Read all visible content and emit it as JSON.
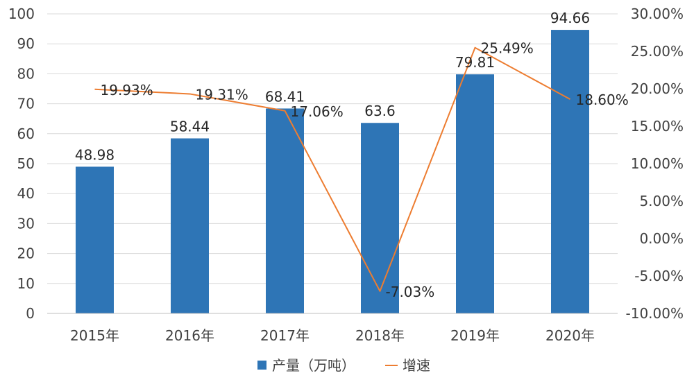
{
  "chart_data": {
    "type": "bar+line",
    "categories": [
      "2015年",
      "2016年",
      "2017年",
      "2018年",
      "2019年",
      "2020年"
    ],
    "series": [
      {
        "name": "产量（万吨）",
        "type": "bar",
        "axis": "left",
        "values": [
          48.98,
          58.44,
          68.41,
          63.6,
          79.81,
          94.66
        ],
        "labels": [
          "48.98",
          "58.44",
          "68.41",
          "63.6",
          "79.81",
          "94.66"
        ],
        "color": "#2E75B6"
      },
      {
        "name": "增速",
        "type": "line",
        "axis": "right",
        "values": [
          19.93,
          19.31,
          17.06,
          -7.03,
          25.49,
          18.6
        ],
        "labels": [
          "19.93%",
          "19.31%",
          "17.06%",
          "-7.03%",
          "25.49%",
          "18.60%"
        ],
        "color": "#ED7D31"
      }
    ],
    "y_left": {
      "range": [
        0,
        100
      ],
      "ticks": [
        0,
        10,
        20,
        30,
        40,
        50,
        60,
        70,
        80,
        90,
        100
      ],
      "tick_labels": [
        "0",
        "10",
        "20",
        "30",
        "40",
        "50",
        "60",
        "70",
        "80",
        "90",
        "100"
      ]
    },
    "y_right": {
      "range": [
        -10,
        30
      ],
      "ticks": [
        -10,
        -5,
        0,
        5,
        10,
        15,
        20,
        25,
        30
      ],
      "tick_labels": [
        "-10.00%",
        "-5.00%",
        "0.00%",
        "5.00%",
        "10.00%",
        "15.00%",
        "20.00%",
        "25.00%",
        "30.00%"
      ]
    },
    "grid": true,
    "legend_position": "bottom",
    "title": "",
    "xlabel": "",
    "ylabel": ""
  }
}
